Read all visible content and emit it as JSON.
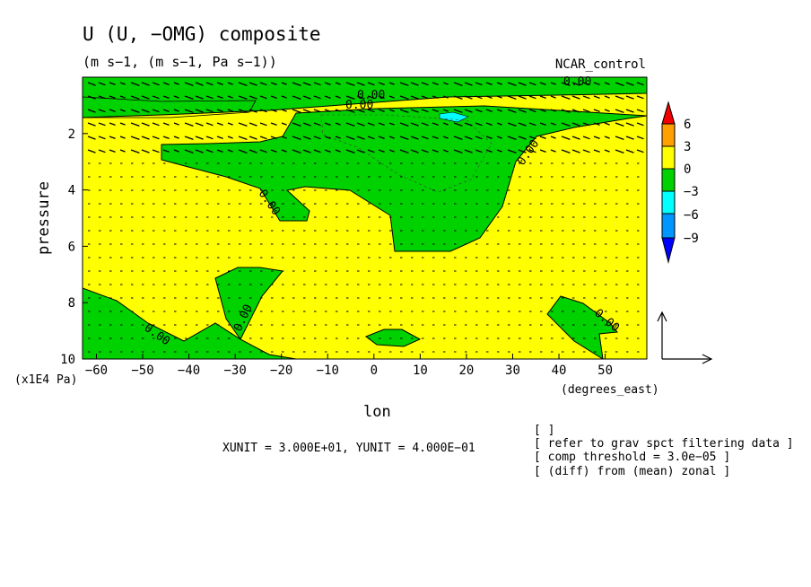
{
  "figure": {
    "title": "U (U, −OMG) composite",
    "units_line": "(m s−1, (m s−1, Pa s−1))",
    "run_label": "NCAR_control",
    "xunit_note": "XUNIT = 3.000E+01, YUNIT = 4.000E−01",
    "notes": [
      "[  ]",
      "[ refer to grav spct filtering data ]",
      "[ comp threshold = 3.0e−05 ]",
      "[ (diff) from (mean) zonal ]"
    ]
  },
  "chart_data": {
    "type": "contour",
    "xlabel": "lon",
    "xunits": "(degrees_east)",
    "ylabel": "pressure",
    "yunits": "(x1E4 Pa)",
    "xlim": [
      -63,
      59
    ],
    "ylim": [
      10,
      0
    ],
    "x_ticks": [
      -60,
      -50,
      -40,
      -30,
      -20,
      -10,
      0,
      10,
      20,
      30,
      40,
      50
    ],
    "y_ticks": [
      2,
      4,
      6,
      8,
      10
    ],
    "colorbar": {
      "levels": [
        "6",
        "3",
        "0",
        "−3",
        "−6",
        "−9"
      ],
      "colors": [
        "#f00000",
        "#ffa000",
        "#ffff00",
        "#00d200",
        "#00ffff",
        "#0096ff",
        "#0000ff"
      ]
    },
    "contour_labels": [
      "0.00",
      "0.00",
      "0.00",
      "0.00",
      "0.00",
      "0.00",
      "0.00",
      "0.00"
    ],
    "negative_regions": [
      {
        "name": "upper band",
        "lon": [
          -63,
          59
        ],
        "p": [
          0,
          1.4
        ]
      },
      {
        "name": "central blob",
        "lon": [
          -45,
          32
        ],
        "p": [
          0.8,
          6.2
        ]
      },
      {
        "name": "west lower",
        "lon": [
          -63,
          -24
        ],
        "p": [
          6.8,
          10
        ]
      },
      {
        "name": "west upper",
        "lon": [
          -63,
          -27
        ],
        "p": [
          0.7,
          1.0
        ]
      },
      {
        "name": "small",
        "lon": [
          -1,
          11
        ],
        "p": [
          9.2,
          9.9
        ]
      },
      {
        "name": "east lower",
        "lon": [
          38,
          54
        ],
        "p": [
          8.0,
          10
        ]
      }
    ],
    "min_region": {
      "level": "−6",
      "lon": [
        13,
        21
      ],
      "p": [
        1.1,
        1.5
      ]
    },
    "vector_field": {
      "components": [
        "U",
        "−OMG"
      ],
      "reference_vector": true
    }
  }
}
